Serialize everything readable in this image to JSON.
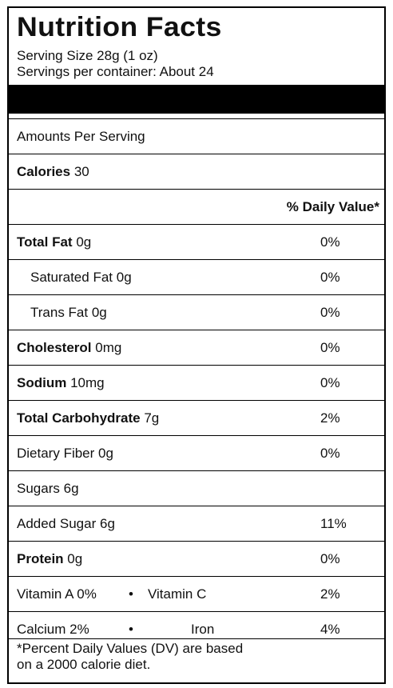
{
  "title": "Nutrition Facts",
  "serving_size": "Serving Size 28g (1 oz)",
  "servings_per_container": "Servings per container: About 24",
  "amounts_per_serving": "Amounts Per Serving",
  "calories": {
    "label": "Calories",
    "value": "30"
  },
  "daily_value_header": "% Daily Value*",
  "nutrients": {
    "total_fat": {
      "label": "Total Fat",
      "amount": "0g",
      "dv": "0%"
    },
    "saturated_fat": {
      "label": "Saturated Fat",
      "amount": "0g",
      "dv": "0%"
    },
    "trans_fat": {
      "label": "Trans Fat",
      "amount": "0g",
      "dv": "0%"
    },
    "cholesterol": {
      "label": "Cholesterol",
      "amount": "0mg",
      "dv": "0%"
    },
    "sodium": {
      "label": "Sodium",
      "amount": "10mg",
      "dv": "0%"
    },
    "total_carbohydrate": {
      "label": "Total Carbohydrate",
      "amount": "7g",
      "dv": "2%"
    },
    "dietary_fiber": {
      "label": "Dietary Fiber",
      "amount": "0g",
      "dv": "0%"
    },
    "sugars": {
      "label": "Sugars",
      "amount": "6g"
    },
    "added_sugar": {
      "label": "Added Sugar",
      "amount": "6g",
      "dv": "11%"
    },
    "protein": {
      "label": "Protein",
      "amount": "0g",
      "dv": "0%"
    }
  },
  "vitamins": {
    "vitamin_a": "Vitamin A 0%",
    "vitamin_c": "Vitamin C",
    "vitamin_c_dv": "2%",
    "calcium": "Calcium 2%",
    "iron": "Iron",
    "iron_dv": "4%",
    "bullet": "•"
  },
  "footnote": {
    "line1": "*Percent Daily Values (DV) are based",
    "line2": "on a 2000 calorie diet."
  }
}
